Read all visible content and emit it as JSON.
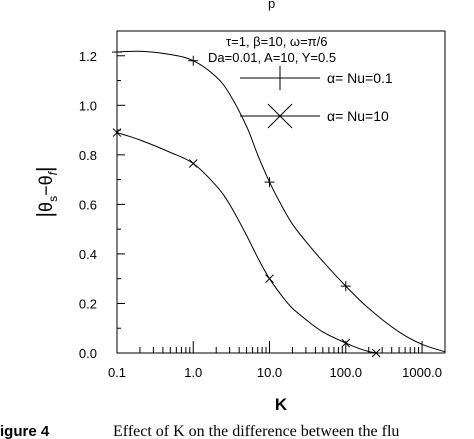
{
  "chart_data": {
    "type": "line",
    "x_scale": "log",
    "xlim": [
      0.1,
      2000
    ],
    "ylim": [
      0,
      1.3
    ],
    "xlabel": "K",
    "ylabel": {
      "bar_left": "|",
      "theta1": "θ",
      "sub1": "s",
      "minus": "−",
      "theta2": "θ",
      "sub2": "f",
      "bar_right": "|"
    },
    "x_ticks": [
      0.1,
      1,
      10,
      100,
      1000
    ],
    "x_tick_labels": [
      "0.1",
      "1.0",
      "10.0",
      "100.0",
      "1000.0"
    ],
    "y_ticks": [
      0,
      0.2,
      0.4,
      0.6,
      0.8,
      1.0,
      1.2
    ],
    "y_tick_labels": [
      "0.0",
      "0.2",
      "0.4",
      "0.6",
      "0.8",
      "1.0",
      "1.2"
    ],
    "grid": false,
    "legend_position": "top-right",
    "parameters": [
      "τ=1, β=10, ω=π/6",
      "Da=0.01, A=10, Y=0.5"
    ],
    "title_fragment": "p",
    "series": [
      {
        "name": "α= Nu=0.1",
        "marker": "plus",
        "points": [
          [
            0.1,
            1.215
          ],
          [
            0.2,
            1.218
          ],
          [
            0.5,
            1.205
          ],
          [
            1,
            1.18
          ],
          [
            2,
            1.115
          ],
          [
            3,
            1.045
          ],
          [
            5,
            0.915
          ],
          [
            7,
            0.8
          ],
          [
            10,
            0.69
          ],
          [
            15,
            0.585
          ],
          [
            20,
            0.52
          ],
          [
            30,
            0.45
          ],
          [
            50,
            0.37
          ],
          [
            100,
            0.27
          ],
          [
            200,
            0.18
          ],
          [
            500,
            0.085
          ],
          [
            1000,
            0.035
          ],
          [
            2000,
            0.005
          ]
        ],
        "marker_points": [
          [
            0.1,
            1.215
          ],
          [
            1,
            1.18
          ],
          [
            10,
            0.69
          ],
          [
            100,
            0.27
          ]
        ]
      },
      {
        "name": "α= Nu=10",
        "marker": "cross",
        "points": [
          [
            0.1,
            0.89
          ],
          [
            0.2,
            0.86
          ],
          [
            0.5,
            0.81
          ],
          [
            1,
            0.765
          ],
          [
            2,
            0.675
          ],
          [
            3,
            0.6
          ],
          [
            5,
            0.475
          ],
          [
            7,
            0.385
          ],
          [
            10,
            0.3
          ],
          [
            15,
            0.225
          ],
          [
            20,
            0.18
          ],
          [
            30,
            0.135
          ],
          [
            50,
            0.085
          ],
          [
            100,
            0.04
          ],
          [
            150,
            0.018
          ],
          [
            200,
            0.006
          ],
          [
            250,
            0.0
          ]
        ],
        "marker_points": [
          [
            0.1,
            0.89
          ],
          [
            1,
            0.765
          ],
          [
            10,
            0.3
          ],
          [
            100,
            0.04
          ],
          [
            250,
            0.0
          ]
        ]
      }
    ]
  },
  "caption": {
    "label": "igure 4",
    "text": "Effect of K on the difference between the flu"
  }
}
